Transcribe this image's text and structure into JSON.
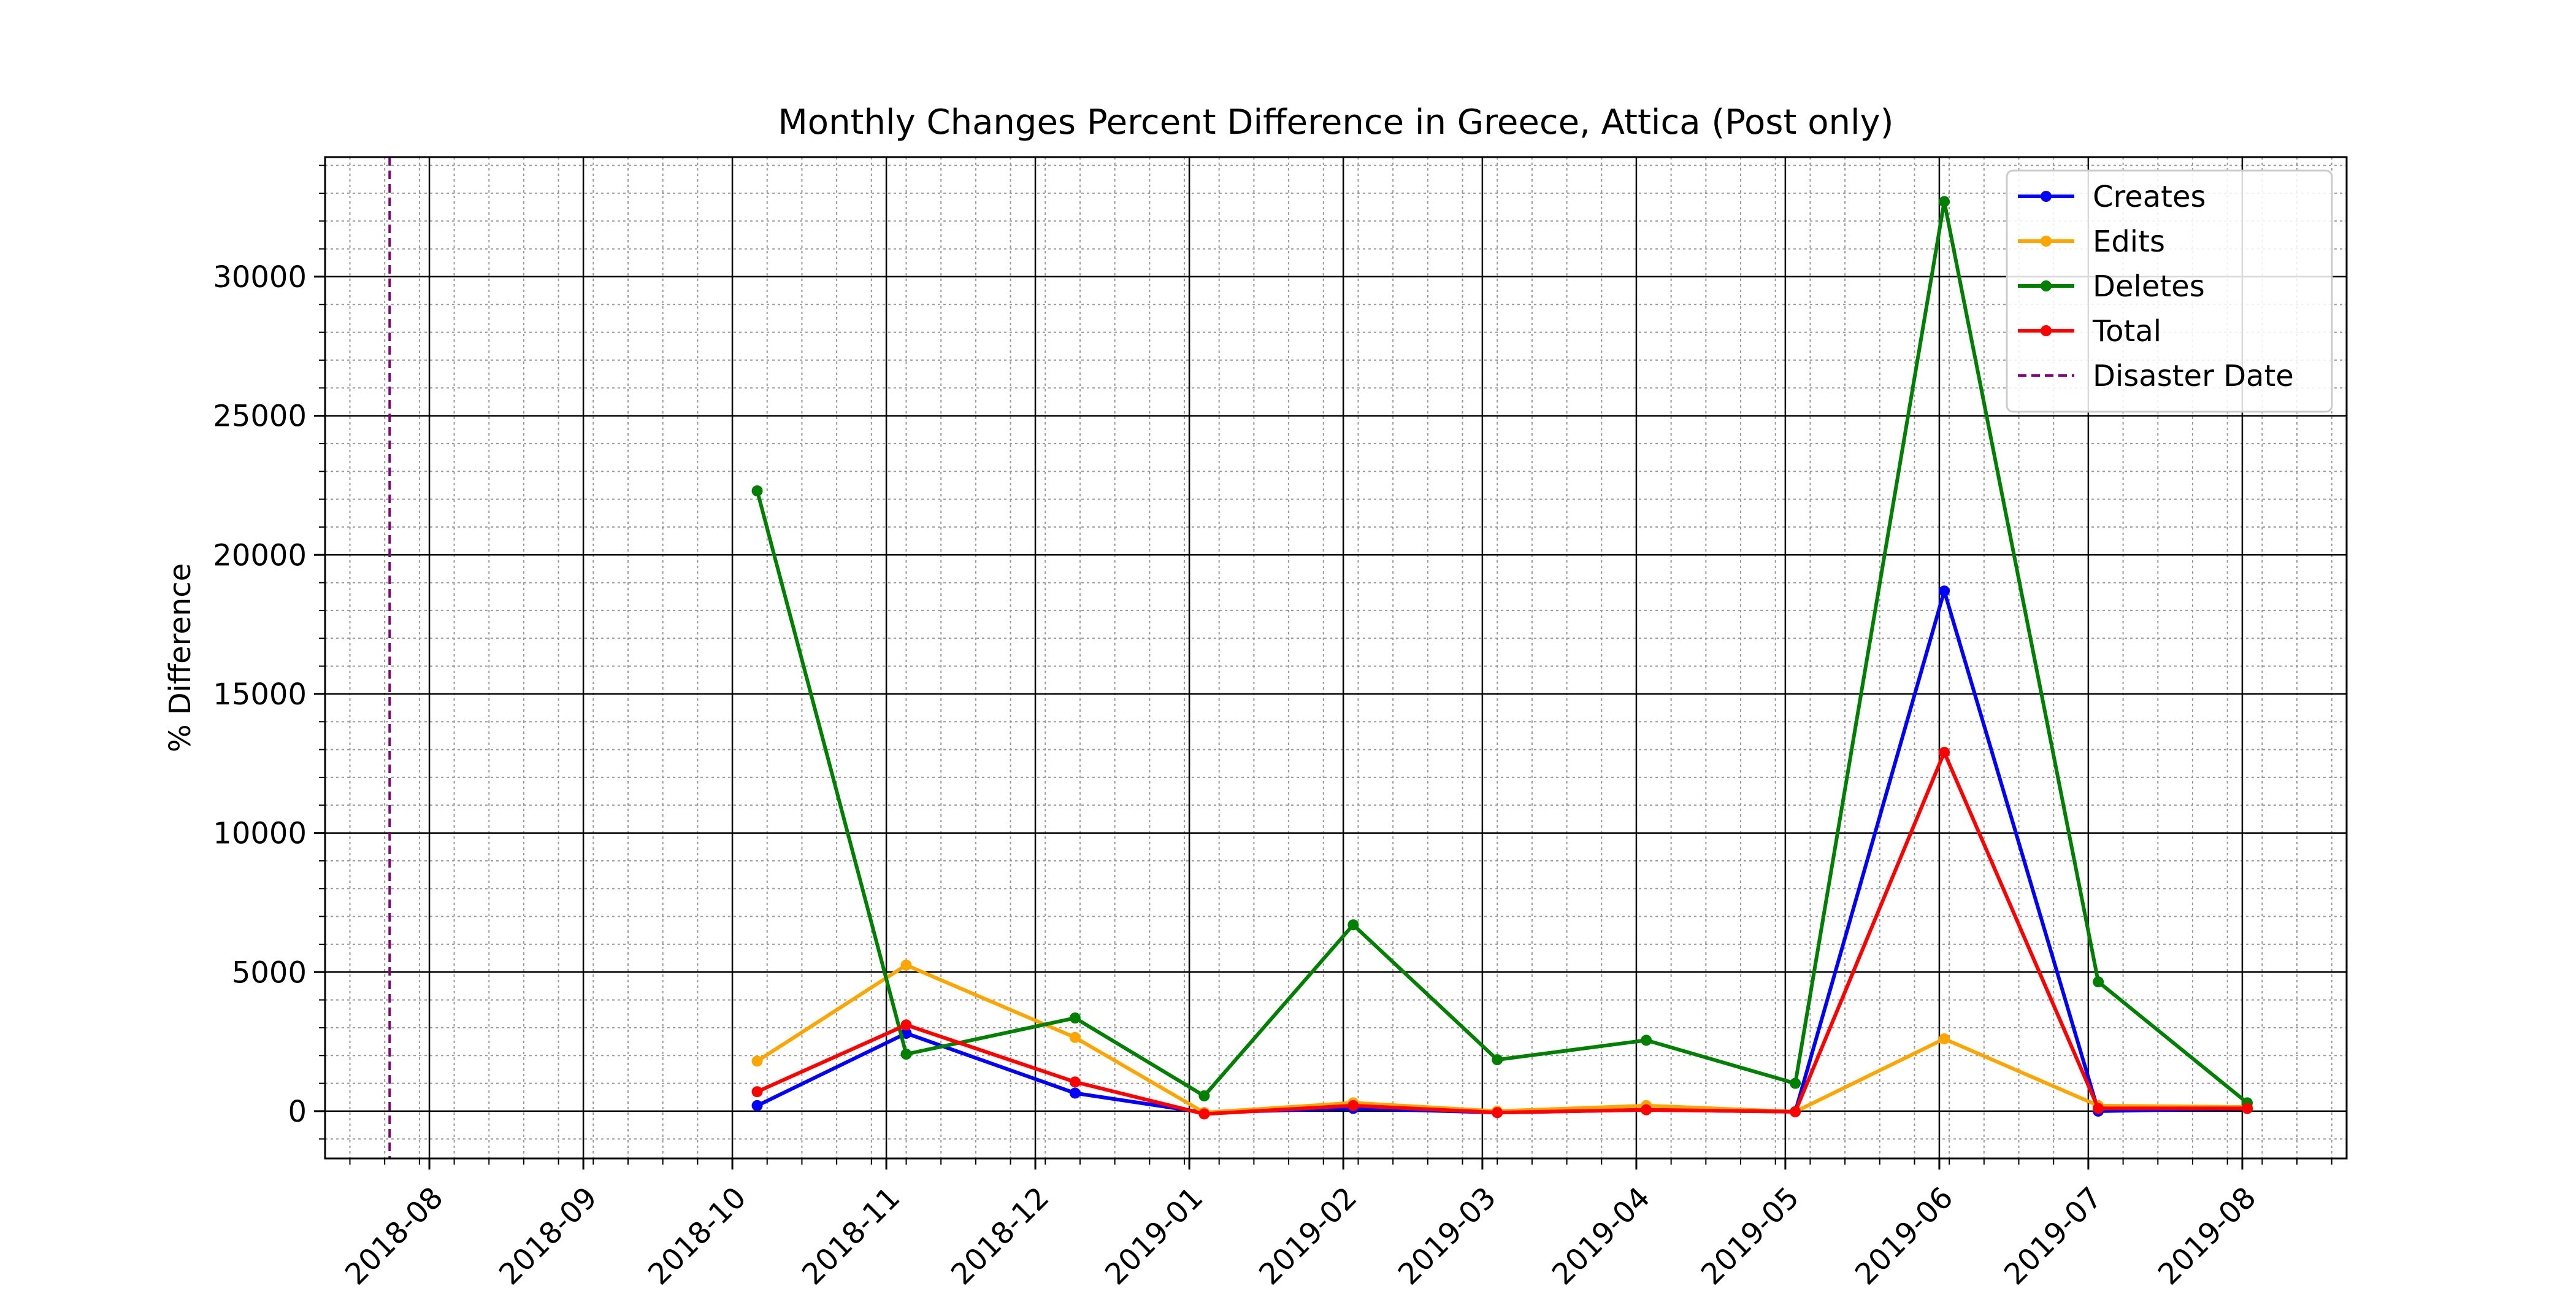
{
  "chart_data": {
    "type": "line",
    "title": "Monthly Changes Percent Difference in Greece, Attica (Post only)",
    "xlabel": "",
    "ylabel": "% Difference",
    "x_type": "date",
    "xlim": [
      "2018-07-11",
      "2019-08-22"
    ],
    "ylim": [
      -1700,
      34300
    ],
    "x_tick_labels": [
      "2018-08",
      "2018-09",
      "2018-10",
      "2018-11",
      "2018-12",
      "2019-01",
      "2019-02",
      "2019-03",
      "2019-04",
      "2019-05",
      "2019-06",
      "2019-07",
      "2019-08"
    ],
    "x_tick_dates": [
      "2018-08-01",
      "2018-09-01",
      "2018-10-01",
      "2018-11-01",
      "2018-12-01",
      "2019-01-01",
      "2019-02-01",
      "2019-03-01",
      "2019-04-01",
      "2019-05-01",
      "2019-06-01",
      "2019-07-01",
      "2019-08-01"
    ],
    "y_ticks": [
      0,
      5000,
      10000,
      15000,
      20000,
      25000,
      30000
    ],
    "x": [
      "2018-10-06",
      "2018-11-05",
      "2018-12-09",
      "2019-01-04",
      "2019-02-03",
      "2019-03-04",
      "2019-04-03",
      "2019-05-03",
      "2019-06-02",
      "2019-07-03",
      "2019-08-02"
    ],
    "series": [
      {
        "name": "Creates",
        "color": "#0000ff",
        "values": [
          200,
          2800,
          650,
          -50,
          100,
          -50,
          50,
          -20,
          18700,
          0,
          100
        ]
      },
      {
        "name": "Edits",
        "color": "#ffa500",
        "values": [
          1800,
          5250,
          2650,
          -50,
          300,
          0,
          200,
          -20,
          2600,
          200,
          150
        ]
      },
      {
        "name": "Deletes",
        "color": "#008000",
        "values": [
          22300,
          2050,
          3350,
          550,
          6700,
          1850,
          2550,
          1000,
          32700,
          4650,
          300
        ]
      },
      {
        "name": "Total",
        "color": "#ff0000",
        "values": [
          700,
          3100,
          1050,
          -100,
          200,
          -50,
          50,
          -20,
          12900,
          100,
          100
        ]
      }
    ],
    "vlines": [
      {
        "name": "Disaster Date",
        "x": "2018-07-24",
        "color": "#800080",
        "style": "dashed"
      }
    ],
    "legend_position": "top-right",
    "grid": {
      "major": true,
      "minor": true
    }
  }
}
